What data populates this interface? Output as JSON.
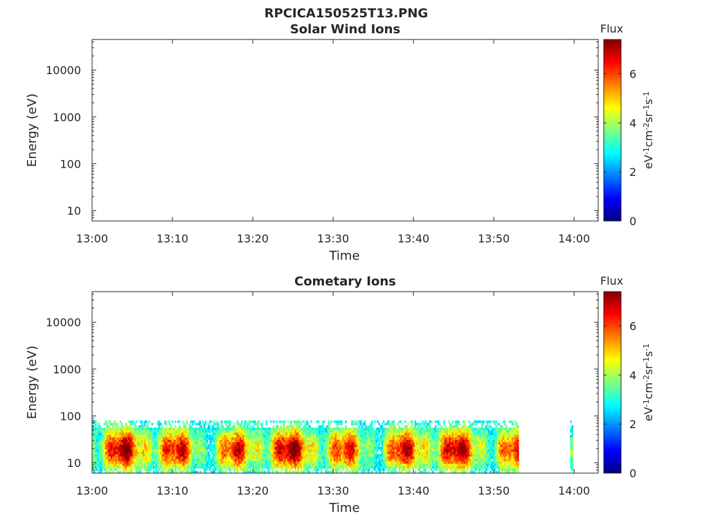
{
  "figure": {
    "title": "RPCICA150525T13.PNG"
  },
  "colorbar": {
    "label": "Flux",
    "unit_parts": [
      "eV",
      "-1",
      "cm",
      "-2",
      "sr",
      "-1",
      "s",
      "-1"
    ],
    "ticks": [
      "0",
      "2",
      "4",
      "6"
    ],
    "range": [
      0,
      7.4
    ],
    "colormap": "jet",
    "colors": [
      "#00007f",
      "#0000ff",
      "#007fff",
      "#00ffff",
      "#7fff7f",
      "#ffff00",
      "#ff7f00",
      "#ff0000",
      "#7f0000"
    ]
  },
  "chart_data": [
    {
      "type": "heatmap",
      "title": "Solar Wind Ions",
      "xlabel": "Time",
      "ylabel": "Energy (eV)",
      "yscale": "log",
      "ylim": [
        6,
        45000
      ],
      "xlim": [
        "13:00",
        "14:03"
      ],
      "x_ticks": [
        "13:00",
        "13:10",
        "13:20",
        "13:30",
        "13:40",
        "13:50",
        "14:00"
      ],
      "y_ticks": [
        "10",
        "100",
        "1000",
        "10000"
      ],
      "flux_segments": []
    },
    {
      "type": "heatmap",
      "title": "Cometary Ions",
      "xlabel": "Time",
      "ylabel": "Energy (eV)",
      "yscale": "log",
      "ylim": [
        6,
        45000
      ],
      "xlim": [
        "13:00",
        "14:03"
      ],
      "x_ticks": [
        "13:00",
        "13:10",
        "13:20",
        "13:30",
        "13:40",
        "13:50",
        "14:00"
      ],
      "y_ticks": [
        "10",
        "100",
        "1000",
        "10000"
      ],
      "flux_segments": [
        {
          "start": "13:00",
          "end": "13:53",
          "energy_max": 80,
          "energy_min": 6,
          "peak_flux": 7.4
        },
        {
          "start": "13:59.5",
          "end": "13:59.8",
          "energy_max": 80,
          "energy_min": 6,
          "peak_flux": 4.0
        }
      ]
    }
  ]
}
